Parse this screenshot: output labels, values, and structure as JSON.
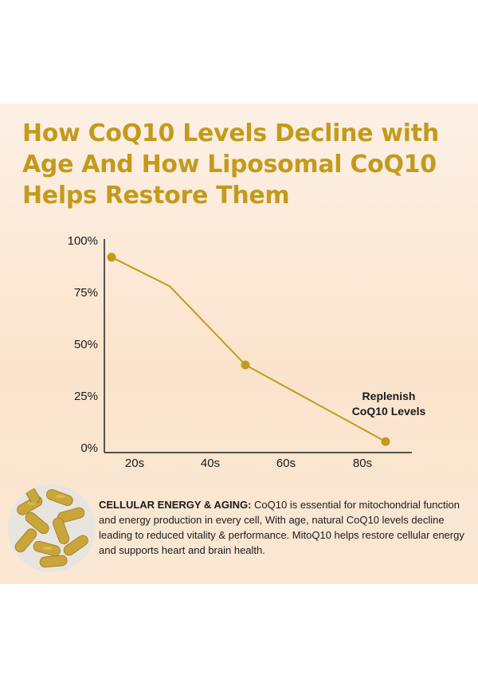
{
  "title_lines": [
    "How CoQ10 Levels Decline with",
    "Age And How Liposomal CoQ10",
    "Helps Restore Them"
  ],
  "colors": {
    "accent": "#c49a1c",
    "line": "#c49a1c",
    "axis": "#222222"
  },
  "chart_data": {
    "type": "line",
    "x_tick_labels": [
      "20s",
      "40s",
      "60s",
      "80s"
    ],
    "y_tick_labels": [
      "100%",
      "75%",
      "50%",
      "25%",
      "0%"
    ],
    "ylim": [
      0,
      100
    ],
    "series": [
      {
        "x": [
          "20s",
          "30s",
          "50s",
          "80s"
        ],
        "values": [
          92,
          78,
          40,
          3
        ],
        "markers": [
          true,
          false,
          true,
          true
        ]
      }
    ],
    "annotation": "Replenish\nCoQ10 Levels",
    "grid": false
  },
  "caption": {
    "heading": "CELLULAR ENERGY & AGING:",
    "body": " CoQ10 is essential for mitochondrial function and energy production in every cell, With age, natural CoQ10 levels decline leading to reduced vitality & performance. MitoQ10 helps restore cellular energy and supports heart and brain health."
  },
  "image_icon": "capsules-photo"
}
